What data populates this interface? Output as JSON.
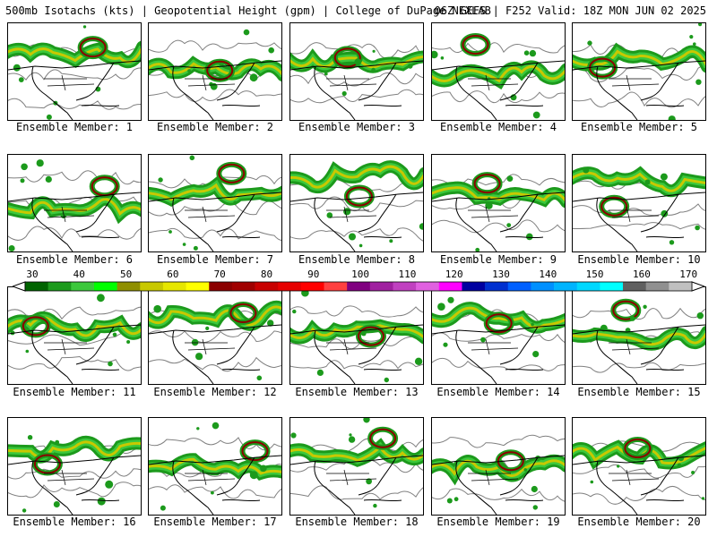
{
  "header": {
    "left": "500mb Isotachs (kts) | Geopotential Height (gpm) | College of DuPage NEXLAB",
    "right": "06Z GEFS | F252 Valid: 18Z MON JUN 02 2025"
  },
  "members": [
    {
      "label": "Ensemble Member: 1"
    },
    {
      "label": "Ensemble Member: 2"
    },
    {
      "label": "Ensemble Member: 3"
    },
    {
      "label": "Ensemble Member: 4"
    },
    {
      "label": "Ensemble Member: 5"
    },
    {
      "label": "Ensemble Member: 6"
    },
    {
      "label": "Ensemble Member: 7"
    },
    {
      "label": "Ensemble Member: 8"
    },
    {
      "label": "Ensemble Member: 9"
    },
    {
      "label": "Ensemble Member: 10"
    },
    {
      "label": "Ensemble Member: 11"
    },
    {
      "label": "Ensemble Member: 12"
    },
    {
      "label": "Ensemble Member: 13"
    },
    {
      "label": "Ensemble Member: 14"
    },
    {
      "label": "Ensemble Member: 15"
    },
    {
      "label": "Ensemble Member: 16"
    },
    {
      "label": "Ensemble Member: 17"
    },
    {
      "label": "Ensemble Member: 18"
    },
    {
      "label": "Ensemble Member: 19"
    },
    {
      "label": "Ensemble Member: 20"
    }
  ],
  "colorbar": {
    "ticks": [
      "30",
      "40",
      "50",
      "60",
      "70",
      "80",
      "90",
      "100",
      "110",
      "120",
      "130",
      "140",
      "150",
      "160",
      "170"
    ],
    "colors": [
      "#006400",
      "#1c9a1c",
      "#3cc83c",
      "#00ff00",
      "#8f8f00",
      "#c8c800",
      "#e6e600",
      "#ffff00",
      "#8b0000",
      "#a00000",
      "#c80000",
      "#e60000",
      "#ff0000",
      "#ff4040",
      "#800080",
      "#a020a0",
      "#c040c0",
      "#e060e0",
      "#ff00ff",
      "#0000a0",
      "#0030d0",
      "#0060ff",
      "#0090ff",
      "#00b4ff",
      "#00d8ff",
      "#00ffff",
      "#606060",
      "#909090",
      "#c0c0c0"
    ]
  }
}
